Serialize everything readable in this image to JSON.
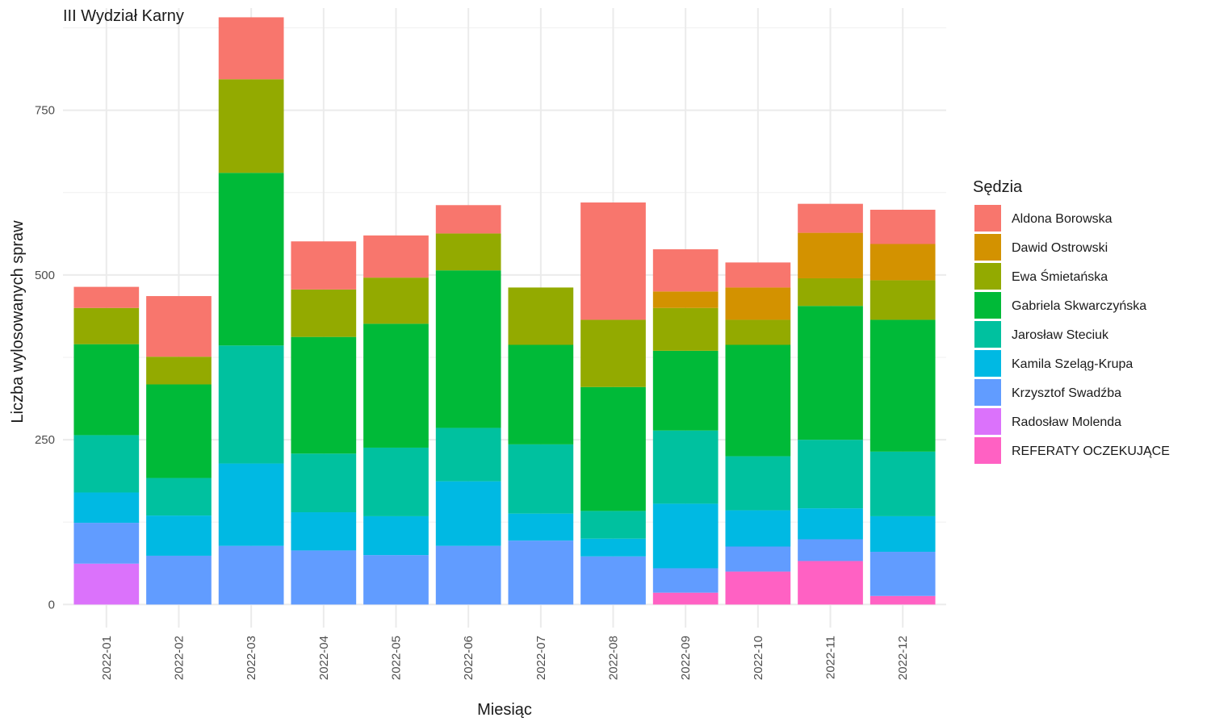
{
  "chart_data": {
    "type": "bar",
    "stacked": true,
    "title": "III Wydział Karny",
    "xlabel": "Miesiąc",
    "ylabel": "Liczba wylosowanych spraw",
    "ylim": [
      -35,
      905
    ],
    "yticks": [
      0,
      250,
      500,
      750
    ],
    "grid": true,
    "legend_title": "Sędzia",
    "legend_position": "right",
    "categories": [
      "2022-01",
      "2022-02",
      "2022-03",
      "2022-04",
      "2022-05",
      "2022-06",
      "2022-07",
      "2022-08",
      "2022-09",
      "2022-10",
      "2022-11",
      "2022-12"
    ],
    "series": [
      {
        "name": "REFERATY OCZEKUJĄCE",
        "color": "#FF61C3",
        "values": [
          0,
          0,
          0,
          0,
          0,
          0,
          0,
          0,
          18,
          50,
          66,
          13
        ]
      },
      {
        "name": "Radosław Molenda",
        "color": "#DB72FB",
        "values": [
          62,
          0,
          0,
          0,
          0,
          0,
          0,
          0,
          0,
          0,
          0,
          0
        ]
      },
      {
        "name": "Krzysztof Swadźba",
        "color": "#619CFF",
        "values": [
          62,
          74,
          89,
          82,
          75,
          89,
          97,
          73,
          37,
          38,
          33,
          67
        ]
      },
      {
        "name": "Kamila Szeląg-Krupa",
        "color": "#00B9E3",
        "values": [
          46,
          61,
          125,
          58,
          59,
          98,
          41,
          27,
          98,
          55,
          47,
          54
        ]
      },
      {
        "name": "Jarosław Steciuk",
        "color": "#00C19F",
        "values": [
          87,
          57,
          179,
          89,
          104,
          81,
          105,
          42,
          111,
          82,
          104,
          98
        ]
      },
      {
        "name": "Gabriela Skwarczyńska",
        "color": "#00BA38",
        "values": [
          138,
          142,
          262,
          177,
          188,
          239,
          151,
          188,
          121,
          169,
          203,
          200
        ]
      },
      {
        "name": "Ewa Śmietańska",
        "color": "#93AA00",
        "values": [
          55,
          42,
          142,
          72,
          70,
          56,
          87,
          102,
          65,
          38,
          42,
          60
        ]
      },
      {
        "name": "Dawid Ostrowski",
        "color": "#D39200",
        "values": [
          0,
          0,
          0,
          0,
          0,
          0,
          0,
          0,
          25,
          49,
          69,
          55
        ]
      },
      {
        "name": "Aldona Borowska",
        "color": "#F8766D",
        "values": [
          32,
          92,
          94,
          73,
          64,
          43,
          0,
          178,
          64,
          38,
          44,
          52
        ]
      }
    ],
    "legend_order": [
      "Aldona Borowska",
      "Dawid Ostrowski",
      "Ewa Śmietańska",
      "Gabriela Skwarczyńska",
      "Jarosław Steciuk",
      "Kamila Szeląg-Krupa",
      "Krzysztof Swadźba",
      "Radosław Molenda",
      "REFERATY OCZEKUJĄCE"
    ]
  }
}
